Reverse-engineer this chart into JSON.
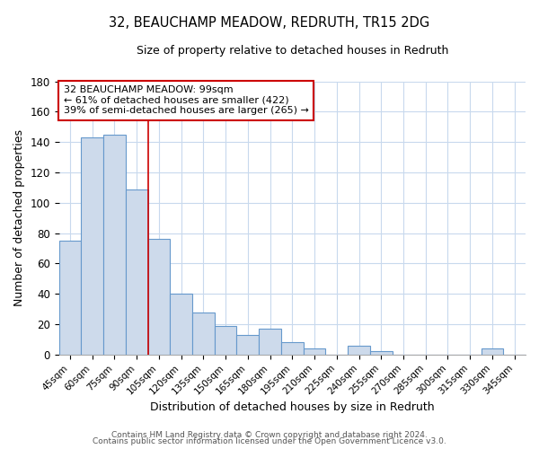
{
  "title": "32, BEAUCHAMP MEADOW, REDRUTH, TR15 2DG",
  "subtitle": "Size of property relative to detached houses in Redruth",
  "xlabel": "Distribution of detached houses by size in Redruth",
  "ylabel": "Number of detached properties",
  "categories": [
    "45sqm",
    "60sqm",
    "75sqm",
    "90sqm",
    "105sqm",
    "120sqm",
    "135sqm",
    "150sqm",
    "165sqm",
    "180sqm",
    "195sqm",
    "210sqm",
    "225sqm",
    "240sqm",
    "255sqm",
    "270sqm",
    "285sqm",
    "300sqm",
    "315sqm",
    "330sqm",
    "345sqm"
  ],
  "values": [
    75,
    143,
    145,
    109,
    76,
    40,
    28,
    19,
    13,
    17,
    8,
    4,
    0,
    6,
    2,
    0,
    0,
    0,
    0,
    4,
    0
  ],
  "bar_color": "#cddaeb",
  "bar_edge_color": "#6699cc",
  "background_color": "#ffffff",
  "grid_color": "#c8d9ed",
  "ylim": [
    0,
    180
  ],
  "yticks": [
    0,
    20,
    40,
    60,
    80,
    100,
    120,
    140,
    160,
    180
  ],
  "annotation_title": "32 BEAUCHAMP MEADOW: 99sqm",
  "annotation_line1": "← 61% of detached houses are smaller (422)",
  "annotation_line2": "39% of semi-detached houses are larger (265) →",
  "annotation_box_color": "#ffffff",
  "annotation_box_edge": "#cc0000",
  "vline_x": 3.5,
  "vline_color": "#cc0000",
  "footer_line1": "Contains HM Land Registry data © Crown copyright and database right 2024.",
  "footer_line2": "Contains public sector information licensed under the Open Government Licence v3.0."
}
